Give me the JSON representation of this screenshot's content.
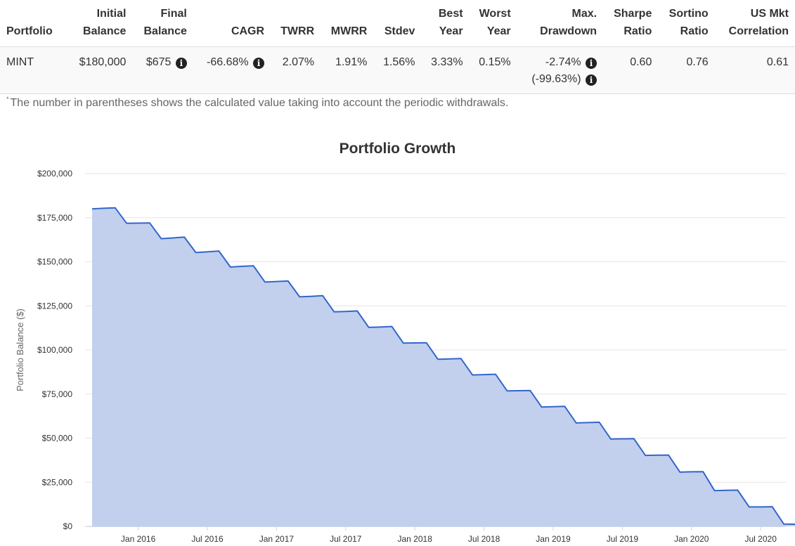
{
  "table": {
    "headers": [
      {
        "line1": "",
        "line2": "Portfolio"
      },
      {
        "line1": "Initial",
        "line2": "Balance"
      },
      {
        "line1": "Final",
        "line2": "Balance"
      },
      {
        "line1": "",
        "line2": "CAGR"
      },
      {
        "line1": "",
        "line2": "TWRR"
      },
      {
        "line1": "",
        "line2": "MWRR"
      },
      {
        "line1": "",
        "line2": "Stdev"
      },
      {
        "line1": "Best",
        "line2": "Year"
      },
      {
        "line1": "Worst",
        "line2": "Year"
      },
      {
        "line1": "Max.",
        "line2": "Drawdown"
      },
      {
        "line1": "Sharpe",
        "line2": "Ratio"
      },
      {
        "line1": "Sortino",
        "line2": "Ratio"
      },
      {
        "line1": "US Mkt",
        "line2": "Correlation"
      }
    ],
    "row": {
      "portfolio": "MINT",
      "initial_balance": "$180,000",
      "final_balance": "$675",
      "cagr": "-66.68%",
      "twrr": "2.07%",
      "mwrr": "1.91%",
      "stdev": "1.56%",
      "best_year": "3.33%",
      "worst_year": "0.15%",
      "max_drawdown": "-2.74%",
      "max_drawdown_adjusted": "(-99.63%)",
      "sharpe_ratio": "0.60",
      "sortino_ratio": "0.76",
      "us_mkt_correlation": "0.61"
    },
    "info_icon": "info-circle-icon",
    "info_glyph": "i"
  },
  "footnote": {
    "marker": "*",
    "text": "The number in parentheses shows the calculated value taking into account the periodic withdrawals."
  },
  "colors": {
    "line": "#3366cc",
    "area_fill": "#c2d0ee",
    "grid": "#e6e6e6",
    "axis_text": "#333333"
  },
  "chart_data": {
    "type": "area",
    "title": "Portfolio Growth",
    "ylabel": "Portfolio Balance ($)",
    "xlabel": "",
    "ylim": [
      0,
      200000
    ],
    "yticks": [
      0,
      25000,
      50000,
      75000,
      100000,
      125000,
      150000,
      175000,
      200000
    ],
    "ytick_labels": [
      "$0",
      "$25,000",
      "$50,000",
      "$75,000",
      "$100,000",
      "$125,000",
      "$150,000",
      "$175,000",
      "$200,000"
    ],
    "xlim": [
      "2015-09",
      "2020-12"
    ],
    "xticks": [
      "2016-01",
      "2016-07",
      "2017-01",
      "2017-07",
      "2018-01",
      "2018-07",
      "2019-01",
      "2019-07",
      "2020-01",
      "2020-07"
    ],
    "xtick_labels": [
      "Jan 2016",
      "Jul 2016",
      "Jan 2017",
      "Jul 2017",
      "Jan 2018",
      "Jul 2018",
      "Jan 2019",
      "Jul 2019",
      "Jan 2020",
      "Jul 2020"
    ],
    "grid": true,
    "legend": "none",
    "series": [
      {
        "x": [
          "2015-09",
          "2015-10",
          "2015-11",
          "2015-12",
          "2016-01",
          "2016-02",
          "2016-03",
          "2016-04",
          "2016-05",
          "2016-06",
          "2016-07",
          "2016-08",
          "2016-09",
          "2016-10",
          "2016-11",
          "2016-12",
          "2017-01",
          "2017-02",
          "2017-03",
          "2017-04",
          "2017-05",
          "2017-06",
          "2017-07",
          "2017-08",
          "2017-09",
          "2017-10",
          "2017-11",
          "2017-12",
          "2018-01",
          "2018-02",
          "2018-03",
          "2018-04",
          "2018-05",
          "2018-06",
          "2018-07",
          "2018-08",
          "2018-09",
          "2018-10",
          "2018-11",
          "2018-12",
          "2019-01",
          "2019-02",
          "2019-03",
          "2019-04",
          "2019-05",
          "2019-06",
          "2019-07",
          "2019-08",
          "2019-09",
          "2019-10",
          "2019-11",
          "2019-12",
          "2020-01",
          "2020-02",
          "2020-03",
          "2020-04",
          "2020-05",
          "2020-06",
          "2020-07",
          "2020-08",
          "2020-09",
          "2020-10",
          "2020-11",
          "2020-12"
        ],
        "values": [
          180000,
          180300,
          180600,
          171800,
          171900,
          172000,
          163100,
          163500,
          164000,
          155200,
          155600,
          156100,
          147000,
          147400,
          147700,
          138500,
          138800,
          139100,
          130100,
          130400,
          130800,
          121600,
          121800,
          122100,
          112800,
          113000,
          113300,
          103900,
          104000,
          104100,
          94700,
          94900,
          95100,
          85800,
          86000,
          86200,
          76800,
          76900,
          77000,
          67600,
          67800,
          68000,
          58600,
          58800,
          59000,
          49500,
          49600,
          49700,
          40200,
          40300,
          40400,
          30700,
          30900,
          31000,
          20200,
          20400,
          20500,
          11000,
          11000,
          11100,
          1300,
          1200,
          1100,
          675
        ]
      }
    ]
  }
}
